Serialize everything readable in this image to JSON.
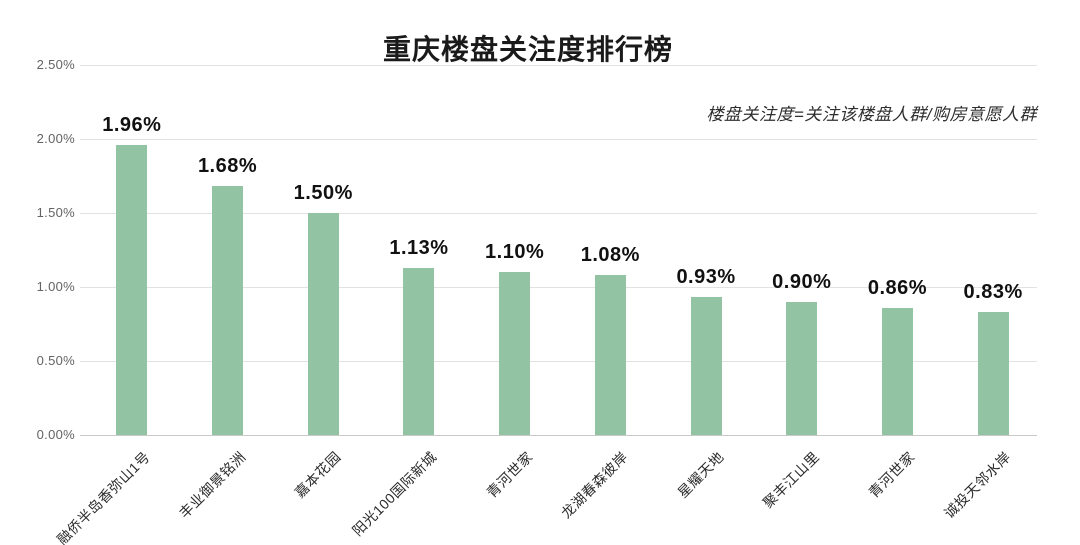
{
  "title": "重庆楼盘关注度排行榜",
  "subtitle": "楼盘关注度=关注该楼盘人群/购房意愿人群",
  "chart_data": {
    "type": "bar",
    "title": "重庆楼盘关注度排行榜",
    "subtitle": "楼盘关注度=关注该楼盘人群/购房意愿人群",
    "categories": [
      "融侨半岛香弥山1号",
      "丰业御景铭洲",
      "嘉本花园",
      "阳光100国际新城",
      "青河世家",
      "龙湖春森彼岸",
      "星耀天地",
      "聚丰江山里",
      "青河世家",
      "诚投天邻水岸"
    ],
    "values": [
      1.96,
      1.68,
      1.5,
      1.13,
      1.1,
      1.08,
      0.93,
      0.9,
      0.86,
      0.83
    ],
    "data_labels": [
      "1.96%",
      "1.68%",
      "1.50%",
      "1.13%",
      "1.10%",
      "1.08%",
      "0.93%",
      "0.90%",
      "0.86%",
      "0.83%"
    ],
    "xlabel": "",
    "ylabel": "",
    "ylim": [
      0,
      2.5
    ],
    "yticks": [
      0,
      0.5,
      1.0,
      1.5,
      2.0,
      2.5
    ],
    "ytick_labels": [
      "0.00%",
      "0.50%",
      "1.00%",
      "1.50%",
      "2.00%",
      "2.50%"
    ],
    "grid": true,
    "legend": false,
    "bar_color": "#92c4a4"
  },
  "colors": {
    "bar": "#92c4a4",
    "gridline": "#e2e2e2",
    "axis_baseline": "#c9c9c9",
    "title_text": "#1a1a1a",
    "value_label_text": "#111111",
    "ytick_text": "#636363",
    "category_text": "#2b2b2b",
    "background": "#ffffff"
  }
}
